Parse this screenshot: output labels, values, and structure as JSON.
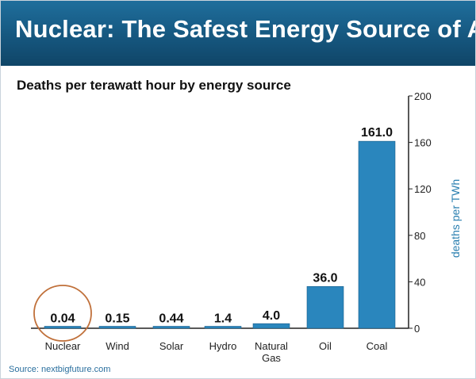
{
  "header": {
    "title": "Nuclear: The Safest Energy Source of All"
  },
  "source": "Source: nextbigfuture.com",
  "colors": {
    "banner": "#16577f",
    "bar": "#2a86bd",
    "highlight_circle": "#c0703a",
    "ylabel": "#2a7fb0"
  },
  "chart_data": {
    "type": "bar",
    "title": "Deaths per terawatt hour by energy source",
    "categories": [
      "Nuclear",
      "Wind",
      "Solar",
      "Hydro",
      "Natural\nGas",
      "Oil",
      "Coal"
    ],
    "values": [
      0.04,
      0.15,
      0.44,
      1.4,
      4.0,
      36.0,
      161.0
    ],
    "value_labels": [
      "0.04",
      "0.15",
      "0.44",
      "1.4",
      "4.0",
      "36.0",
      "161.0"
    ],
    "ylabel": "deaths per TWh",
    "ylim": [
      0,
      200
    ],
    "yticks": [
      0,
      40,
      80,
      120,
      160,
      200
    ],
    "y_axis_position": "right",
    "grid": false,
    "highlight": "Nuclear"
  }
}
